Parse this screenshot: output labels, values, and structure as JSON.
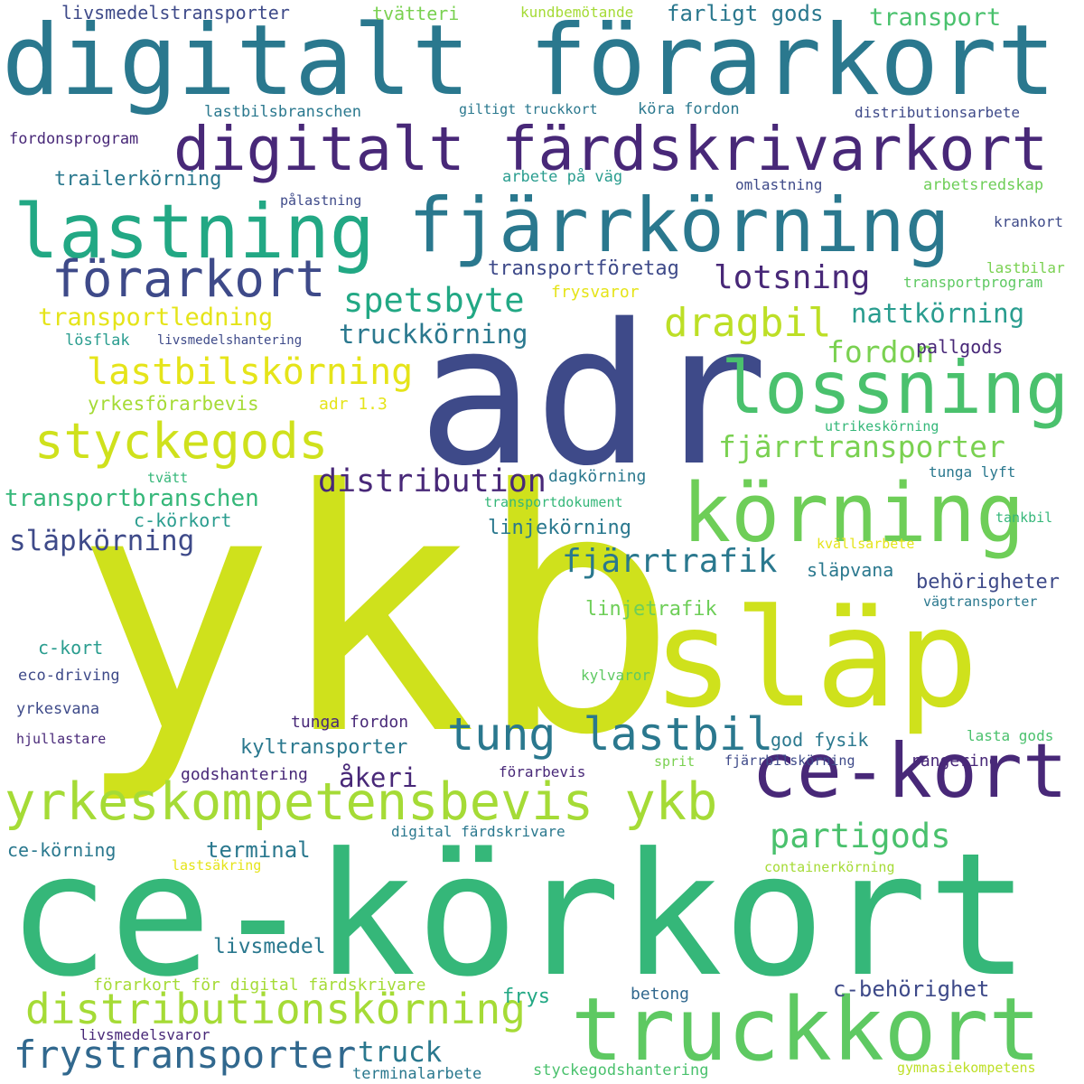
{
  "words": [
    {
      "text": "ykb",
      "color": "#cfe11c"
    },
    {
      "text": "adr",
      "color": "#3e4a89"
    },
    {
      "text": "ce-körkort",
      "color": "#35b779"
    },
    {
      "text": "släp",
      "color": "#cfe11c"
    },
    {
      "text": "digitalt förarkort",
      "color": "#2a788e"
    },
    {
      "text": "truckkort",
      "color": "#5ec962"
    },
    {
      "text": "körning",
      "color": "#6ece58"
    },
    {
      "text": "fjärrkörning",
      "color": "#2a788e"
    },
    {
      "text": "ce-kort",
      "color": "#482878"
    },
    {
      "text": "lastning",
      "color": "#22a884"
    },
    {
      "text": "lossning",
      "color": "#4ac16d"
    },
    {
      "text": "digitalt färdskrivarkort",
      "color": "#482878"
    },
    {
      "text": "yrkeskompetensbevis ykb",
      "color": "#a5db36"
    },
    {
      "text": "förarkort",
      "color": "#3e4a89"
    },
    {
      "text": "styckegods",
      "color": "#cfe11c"
    },
    {
      "text": "tung lastbil",
      "color": "#2a788e"
    },
    {
      "text": "distributionskörning",
      "color": "#a5db36"
    },
    {
      "text": "dragbil",
      "color": "#bddf26"
    },
    {
      "text": "frystransporter",
      "color": "#31688e"
    },
    {
      "text": "lastbilskörning",
      "color": "#e5e419"
    },
    {
      "text": "spetsbyte",
      "color": "#22a884"
    },
    {
      "text": "partigods",
      "color": "#4ac16d"
    },
    {
      "text": "distribution",
      "color": "#482878"
    },
    {
      "text": "fjärrtransporter",
      "color": "#7ad151"
    },
    {
      "text": "fjärrtrafik",
      "color": "#2a788e"
    },
    {
      "text": "lotsning",
      "color": "#482878"
    },
    {
      "text": "fordon",
      "color": "#7ad151"
    },
    {
      "text": "släpkörning",
      "color": "#3e4a89"
    },
    {
      "text": "truck",
      "color": "#2a788e"
    },
    {
      "text": "nattkörning",
      "color": "#2a9d8f"
    },
    {
      "text": "truckkörning",
      "color": "#2a788e"
    },
    {
      "text": "transportledning",
      "color": "#e5e419"
    },
    {
      "text": "transportbranschen",
      "color": "#35b779"
    },
    {
      "text": "transport",
      "color": "#4ac16d"
    },
    {
      "text": "farligt gods",
      "color": "#2a788e"
    },
    {
      "text": "terminal",
      "color": "#2a788e"
    },
    {
      "text": "åkeri",
      "color": "#482878"
    },
    {
      "text": "c-behörighet",
      "color": "#3e4a89"
    },
    {
      "text": "transportföretag",
      "color": "#3e4a89"
    },
    {
      "text": "livsmedel",
      "color": "#2a788e"
    },
    {
      "text": "behörigheter",
      "color": "#3e4a89"
    },
    {
      "text": "kyltransporter",
      "color": "#2a788e"
    },
    {
      "text": "linjekörning",
      "color": "#2a788e"
    },
    {
      "text": "linjetrafik",
      "color": "#6ece58"
    },
    {
      "text": "trailerkörning",
      "color": "#2a788e"
    },
    {
      "text": "livsmedelstransporter",
      "color": "#3e4a89"
    },
    {
      "text": "yrkesförarbevis",
      "color": "#a5db36"
    },
    {
      "text": "c-körkort",
      "color": "#2a9d8f"
    },
    {
      "text": "ce-körning",
      "color": "#2a788e"
    },
    {
      "text": "frys",
      "color": "#22a884"
    },
    {
      "text": "pallgods",
      "color": "#482878"
    },
    {
      "text": "tvätteri",
      "color": "#7ad151"
    },
    {
      "text": "godshantering",
      "color": "#482878"
    },
    {
      "text": "tunga fordon",
      "color": "#482878"
    },
    {
      "text": "god fysik",
      "color": "#2a788e"
    },
    {
      "text": "släpvana",
      "color": "#2a788e"
    },
    {
      "text": "rangering",
      "color": "#482878"
    },
    {
      "text": "dagkörning",
      "color": "#2a788e"
    },
    {
      "text": "c-kort",
      "color": "#2a9d8f"
    },
    {
      "text": "förarkort för digital färdskrivare",
      "color": "#a5db36"
    },
    {
      "text": "adr 1.3",
      "color": "#e5e419"
    },
    {
      "text": "frysvaror",
      "color": "#e5e419"
    },
    {
      "text": "terminalarbete",
      "color": "#2a788e"
    },
    {
      "text": "styckegodshantering",
      "color": "#4ac16d"
    },
    {
      "text": "betong",
      "color": "#31688e"
    },
    {
      "text": "livsmedelsvaror",
      "color": "#482878"
    },
    {
      "text": "eco-driving",
      "color": "#3e4a89"
    },
    {
      "text": "yrkesvana",
      "color": "#3e4a89"
    },
    {
      "text": "hjullastare",
      "color": "#482878"
    },
    {
      "text": "lösflak",
      "color": "#2a9d8f"
    },
    {
      "text": "lastbilsbranschen",
      "color": "#2a788e"
    },
    {
      "text": "fordonsprogram",
      "color": "#482878"
    },
    {
      "text": "giltigt truckkort",
      "color": "#2a788e"
    },
    {
      "text": "köra fordon",
      "color": "#2a788e"
    },
    {
      "text": "distributionsarbete",
      "color": "#3e4a89"
    },
    {
      "text": "arbete på väg",
      "color": "#2a9d8f"
    },
    {
      "text": "omlastning",
      "color": "#3e4a89"
    },
    {
      "text": "arbetsredskap",
      "color": "#6ece58"
    },
    {
      "text": "pålastning",
      "color": "#3e4a89"
    },
    {
      "text": "krankort",
      "color": "#3e4a89"
    },
    {
      "text": "lastbilar",
      "color": "#7ad151"
    },
    {
      "text": "transportprogram",
      "color": "#5ec962"
    },
    {
      "text": "livsmedelshantering",
      "color": "#3e4a89"
    },
    {
      "text": "kundbemötande",
      "color": "#a5db36"
    },
    {
      "text": "utrikeskörning",
      "color": "#35b779"
    },
    {
      "text": "tvätt",
      "color": "#35b779"
    },
    {
      "text": "tunga lyft",
      "color": "#2a788e"
    },
    {
      "text": "transportdokument",
      "color": "#35b779"
    },
    {
      "text": "tankbil",
      "color": "#35b779"
    },
    {
      "text": "kvällsarbete",
      "color": "#e5e419"
    },
    {
      "text": "vägtransporter",
      "color": "#2a788e"
    },
    {
      "text": "kylvaror",
      "color": "#5ec962"
    },
    {
      "text": "lasta gods",
      "color": "#4ac16d"
    },
    {
      "text": "sprit",
      "color": "#7ad151"
    },
    {
      "text": "fjärrbilskörning",
      "color": "#3e4a89"
    },
    {
      "text": "förarbevis",
      "color": "#482878"
    },
    {
      "text": "digital färdskrivare",
      "color": "#2a788e"
    },
    {
      "text": "lastsäkring",
      "color": "#e5e419"
    },
    {
      "text": "containerkörning",
      "color": "#a5db36"
    },
    {
      "text": "gymnasiekompetens",
      "color": "#bddf26"
    }
  ]
}
